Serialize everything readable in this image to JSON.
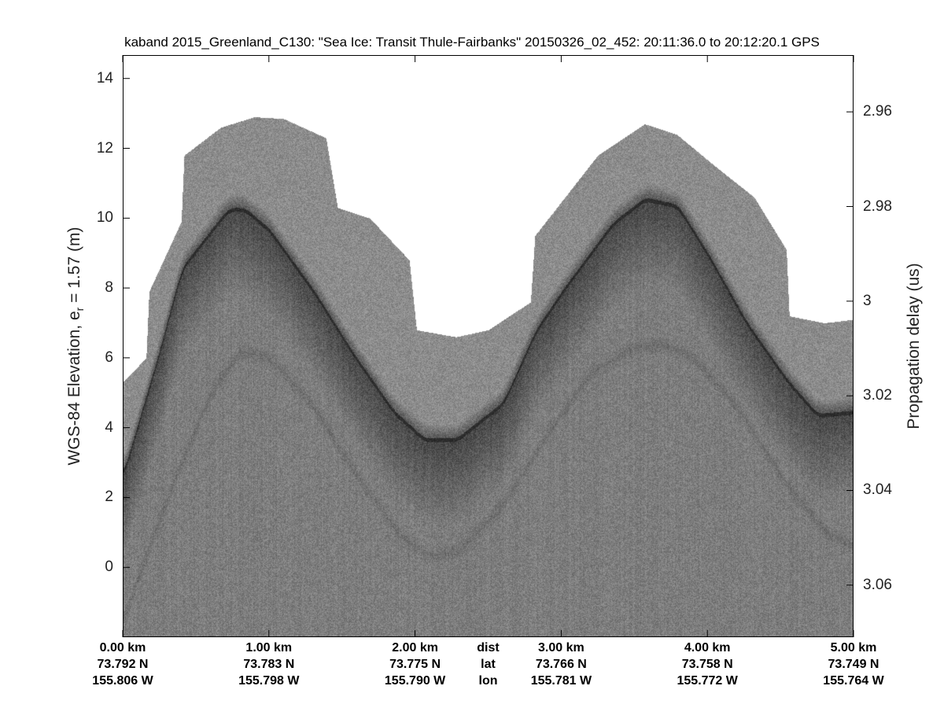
{
  "chart_data": {
    "type": "heatmap",
    "title": "kaband 2015_Greenland_C130: \"Sea Ice: Transit Thule-Fairbanks\"  20150326_02_452: 20:11:36.0 to 20:12:20.1 GPS",
    "ylabel_main": "WGS-84 Elevation, e",
    "ylabel_sub": "r",
    "ylabel_rest": " = 1.57 (m)",
    "ylabel_right": "Propagation delay (us)",
    "xlim": [
      0,
      5
    ],
    "ylim": [
      -2.0,
      14.67
    ],
    "ylim_right": [
      2.948,
      3.071
    ],
    "yticks": [
      0,
      2,
      4,
      6,
      8,
      10,
      12,
      14
    ],
    "yticks_right": [
      "2.96",
      "2.98",
      "3",
      "3.02",
      "3.04",
      "3.06"
    ],
    "yticks_right_values": [
      2.96,
      2.98,
      3.0,
      3.02,
      3.04,
      3.06
    ],
    "xtick_values": [
      0,
      1,
      2,
      3,
      4,
      5
    ],
    "xtick_rows": {
      "dist": [
        "0.00 km",
        "1.00 km",
        "2.00 km",
        "3.00 km",
        "4.00 km",
        "5.00 km"
      ],
      "lat": [
        "73.792 N",
        "73.783 N",
        "73.775 N",
        "73.766 N",
        "73.758 N",
        "73.749 N"
      ],
      "lon": [
        "155.806 W",
        "155.798 W",
        "155.790 W",
        "155.781 W",
        "155.772 W",
        "155.764 W"
      ]
    },
    "row_labels": {
      "dist": "dist",
      "lat": "lat",
      "lon": "lon"
    },
    "row_label_position_km": 2.5,
    "colormap": "gray",
    "surface_trace": {
      "x_km": [
        0,
        0.24,
        0.4,
        0.72,
        0.83,
        1.0,
        1.31,
        1.58,
        1.85,
        2.06,
        2.28,
        2.6,
        2.82,
        3.03,
        3.35,
        3.57,
        3.79,
        4.0,
        4.27,
        4.54,
        4.75,
        5.0
      ],
      "elev_m": [
        2.7,
        6.1,
        8.6,
        10.3,
        10.3,
        9.7,
        7.9,
        6.1,
        4.5,
        3.7,
        3.7,
        4.75,
        6.8,
        8.1,
        9.9,
        10.6,
        10.4,
        9.0,
        7.0,
        5.4,
        4.4,
        4.5
      ]
    },
    "data_top_envelope": {
      "x_km": [
        0,
        0.16,
        0.18,
        0.4,
        0.42,
        0.67,
        0.9,
        1.1,
        1.39,
        1.47,
        1.69,
        1.96,
        2.01,
        2.28,
        2.5,
        2.79,
        2.82,
        3.25,
        3.57,
        3.79,
        4.05,
        4.32,
        4.54,
        4.56,
        4.8,
        5.0
      ],
      "elev_m": [
        5.3,
        6.0,
        7.9,
        9.9,
        11.8,
        12.6,
        12.9,
        12.85,
        12.3,
        10.3,
        10.0,
        8.8,
        6.8,
        6.6,
        6.8,
        7.6,
        9.5,
        11.8,
        12.7,
        12.4,
        11.5,
        10.6,
        9.1,
        7.2,
        7.0,
        7.1
      ]
    },
    "multiple_trace": {
      "x_km": [
        0,
        0.3,
        0.6,
        0.8,
        1.0,
        1.3,
        1.6,
        1.9,
        2.1,
        2.3,
        2.6,
        2.9,
        3.2,
        3.5,
        3.7,
        3.9,
        4.2,
        4.5,
        4.8,
        5.0
      ],
      "elev_m": [
        -1.5,
        2.0,
        5.0,
        6.2,
        6.0,
        4.6,
        2.6,
        0.9,
        0.3,
        0.5,
        1.8,
        3.8,
        5.6,
        6.3,
        6.4,
        6.0,
        4.6,
        2.6,
        1.0,
        0.6
      ]
    }
  }
}
